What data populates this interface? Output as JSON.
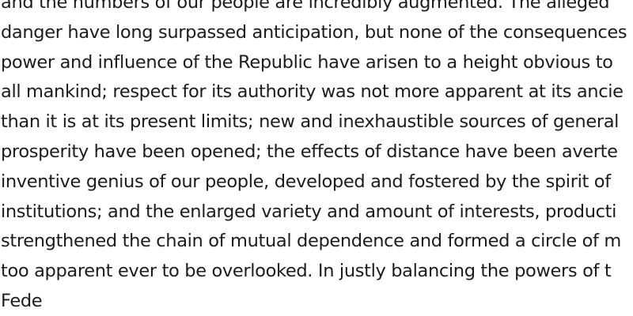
{
  "document": {
    "lines": [
      "and the numbers of our people are incredibly augmented. The alleged",
      "danger have long surpassed anticipation, but none of the consequences",
      "power and influence of the Republic have arisen to a height obvious to",
      "all mankind; respect for its authority was not more apparent at its ancie",
      "than it is at its present limits; new and inexhaustible sources of general",
      "prosperity have been opened; the effects of distance have been averte",
      "inventive genius of our people, developed and fostered by the spirit of",
      "institutions; and the enlarged variety and amount of interests, producti",
      "strengthened the chain of mutual dependence and formed a circle of m",
      "too apparent ever to be overlooked. In justly balancing the powers of t",
      "Fede"
    ]
  },
  "colors": {
    "text": "#1c1c1c",
    "background": "#ffffff"
  }
}
